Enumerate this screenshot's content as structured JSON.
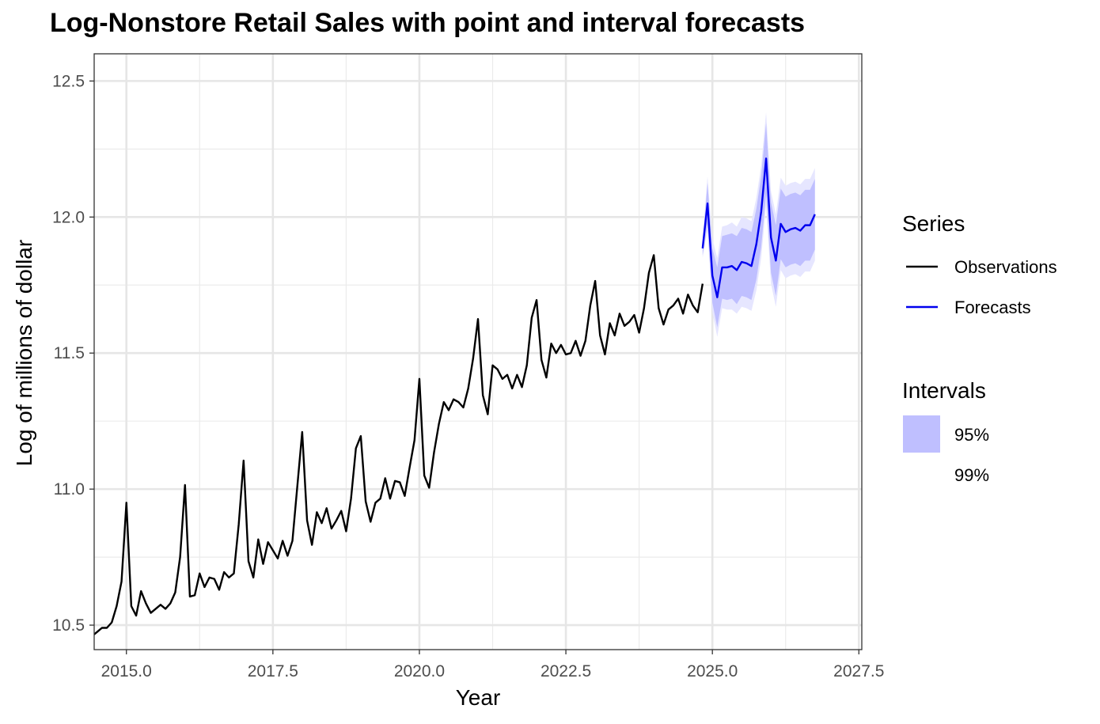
{
  "chart_data": {
    "type": "line",
    "title": "Log-Nonstore Retail Sales with point and interval forecasts",
    "xlabel": "Year",
    "ylabel": "Log of millions of dollar",
    "xlim": [
      2014.45,
      2027.55
    ],
    "ylim": [
      10.41,
      12.6
    ],
    "x_ticks": [
      2015.0,
      2017.5,
      2020.0,
      2022.5,
      2025.0,
      2027.5
    ],
    "x_tick_labels": [
      "2015.0",
      "2017.5",
      "2020.0",
      "2022.5",
      "2025.0",
      "2027.5"
    ],
    "y_ticks": [
      10.5,
      11.0,
      11.5,
      12.0,
      12.5
    ],
    "y_tick_labels": [
      "10.5",
      "11.0",
      "11.5",
      "12.0",
      "12.5"
    ],
    "grid": true,
    "legend": {
      "position": "right",
      "series_title": "Series",
      "series_labels": [
        "Observations",
        "Forecasts"
      ],
      "intervals_title": "Intervals",
      "interval_labels": [
        "95%",
        "99%"
      ]
    },
    "colors": {
      "observations": "#000000",
      "forecasts": "#0000ee",
      "interval95": "#bfbfff",
      "interval99": "#e6e6ff"
    },
    "observations": {
      "name": "Observations",
      "x_start": 2014.4167,
      "x_step": 0.0833333,
      "values": [
        10.46,
        10.475,
        10.49,
        10.49,
        10.51,
        10.57,
        10.66,
        10.95,
        10.57,
        10.535,
        10.625,
        10.58,
        10.545,
        10.56,
        10.575,
        10.56,
        10.58,
        10.62,
        10.75,
        11.015,
        10.605,
        10.61,
        10.69,
        10.64,
        10.675,
        10.67,
        10.63,
        10.695,
        10.675,
        10.69,
        10.87,
        11.105,
        10.735,
        10.675,
        10.815,
        10.725,
        10.805,
        10.775,
        10.745,
        10.81,
        10.755,
        10.81,
        11.01,
        11.21,
        10.885,
        10.795,
        10.915,
        10.875,
        10.93,
        10.855,
        10.885,
        10.92,
        10.845,
        10.965,
        11.15,
        11.195,
        10.955,
        10.88,
        10.95,
        10.965,
        11.04,
        10.965,
        11.03,
        11.025,
        10.975,
        11.08,
        11.18,
        11.405,
        11.05,
        11.005,
        11.135,
        11.24,
        11.32,
        11.29,
        11.33,
        11.32,
        11.3,
        11.37,
        11.48,
        11.625,
        11.345,
        11.275,
        11.455,
        11.44,
        11.405,
        11.42,
        11.37,
        11.42,
        11.375,
        11.455,
        11.63,
        11.695,
        11.475,
        11.41,
        11.535,
        11.5,
        11.53,
        11.495,
        11.5,
        11.545,
        11.49,
        11.545,
        11.675,
        11.765,
        11.565,
        11.495,
        11.61,
        11.565,
        11.645,
        11.6,
        11.615,
        11.64,
        11.575,
        11.665,
        11.795,
        11.86,
        11.665,
        11.605,
        11.66,
        11.675,
        11.7,
        11.645,
        11.715,
        11.675,
        11.65,
        11.755
      ]
    },
    "forecasts": {
      "name": "Forecasts",
      "x": [
        2024.8333,
        2024.9167,
        2025.0,
        2025.0833,
        2025.1667,
        2025.25,
        2025.3333,
        2025.4167,
        2025.5,
        2025.5833,
        2025.6667,
        2025.75,
        2025.8333,
        2025.9167,
        2026.0,
        2026.0833,
        2026.1667,
        2026.25,
        2026.3333,
        2026.4167,
        2026.5,
        2026.5833,
        2026.6667,
        2026.75
      ],
      "values": [
        11.885,
        12.05,
        11.785,
        11.705,
        11.815,
        11.815,
        11.82,
        11.805,
        11.835,
        11.83,
        11.82,
        11.9,
        12.02,
        12.215,
        11.925,
        11.84,
        11.975,
        11.945,
        11.955,
        11.96,
        11.95,
        11.97,
        11.97,
        12.01
      ],
      "hw95": [
        0.025,
        0.075,
        0.1,
        0.11,
        0.115,
        0.12,
        0.12,
        0.125,
        0.125,
        0.125,
        0.125,
        0.13,
        0.13,
        0.13,
        0.13,
        0.13,
        0.13,
        0.13,
        0.13,
        0.13,
        0.13,
        0.13,
        0.13,
        0.13
      ],
      "hw99": [
        0.035,
        0.1,
        0.135,
        0.145,
        0.15,
        0.155,
        0.16,
        0.16,
        0.165,
        0.165,
        0.165,
        0.17,
        0.17,
        0.17,
        0.17,
        0.17,
        0.17,
        0.17,
        0.17,
        0.17,
        0.17,
        0.17,
        0.17,
        0.17
      ]
    }
  }
}
